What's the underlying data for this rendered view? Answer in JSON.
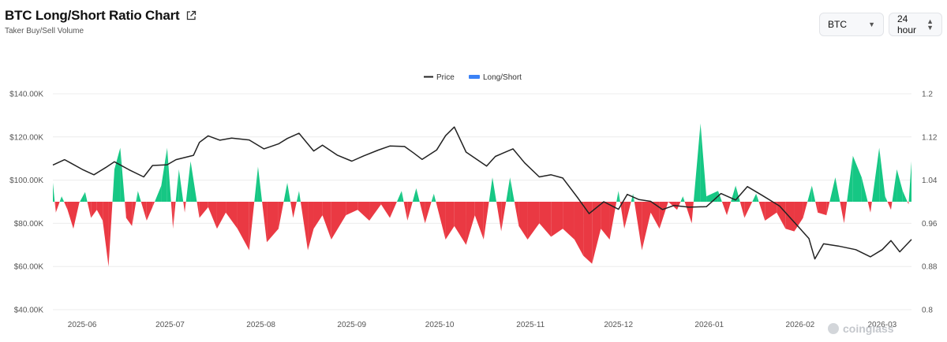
{
  "header": {
    "title": "BTC Long/Short Ratio Chart",
    "subtitle": "Taker Buy/Sell Volume"
  },
  "controls": {
    "coin": "BTC",
    "interval": "24 hour"
  },
  "watermark": "coinglass",
  "colors": {
    "price": "#222222",
    "positive": "#16c784",
    "negative": "#ea3943",
    "legend_ratio": "#3b82f6",
    "grid": "#ececec"
  },
  "chart_data": {
    "type": "line",
    "legend": [
      "Price",
      "Long/Short"
    ],
    "y_left": {
      "lim": [
        40000,
        140000
      ],
      "ticks": [
        "$40.00K",
        "$60.00K",
        "$80.00K",
        "$100.00K",
        "$120.00K",
        "$140.00K"
      ],
      "tick_values": [
        40000,
        60000,
        80000,
        100000,
        120000,
        140000
      ]
    },
    "y_right": {
      "lim": [
        0.8,
        1.2
      ],
      "ticks": [
        "0.8",
        "0.88",
        "0.96",
        "1.04",
        "1.12",
        "1.2"
      ],
      "tick_values": [
        0.8,
        0.88,
        0.96,
        1.04,
        1.12,
        1.2
      ],
      "baseline": 1.0
    },
    "x_ticks": [
      "2025-06",
      "2025-07",
      "2025-08",
      "2025-09",
      "2025-10",
      "2025-11",
      "2025-12",
      "2026-01",
      "2026-02",
      "2026-03"
    ],
    "x_start": "2025-05-22",
    "x_end": "2026-03-11",
    "series": [
      {
        "name": "Price",
        "points": [
          [
            "2025-05-22",
            107000
          ],
          [
            "2025-05-26",
            109500
          ],
          [
            "2025-05-28",
            108000
          ],
          [
            "2025-06-01",
            105000
          ],
          [
            "2025-06-05",
            102500
          ],
          [
            "2025-06-09",
            105800
          ],
          [
            "2025-06-12",
            108500
          ],
          [
            "2025-06-17",
            104800
          ],
          [
            "2025-06-22",
            101500
          ],
          [
            "2025-06-25",
            106800
          ],
          [
            "2025-06-30",
            107100
          ],
          [
            "2025-07-03",
            109500
          ],
          [
            "2025-07-09",
            111500
          ],
          [
            "2025-07-11",
            117500
          ],
          [
            "2025-07-14",
            120500
          ],
          [
            "2025-07-18",
            118500
          ],
          [
            "2025-07-22",
            119500
          ],
          [
            "2025-07-28",
            118600
          ],
          [
            "2025-08-02",
            114500
          ],
          [
            "2025-08-07",
            116800
          ],
          [
            "2025-08-10",
            119300
          ],
          [
            "2025-08-14",
            121700
          ],
          [
            "2025-08-19",
            113500
          ],
          [
            "2025-08-22",
            116200
          ],
          [
            "2025-08-27",
            111600
          ],
          [
            "2025-09-01",
            108800
          ],
          [
            "2025-09-05",
            111200
          ],
          [
            "2025-09-10",
            113900
          ],
          [
            "2025-09-14",
            115800
          ],
          [
            "2025-09-19",
            115600
          ],
          [
            "2025-09-22",
            112700
          ],
          [
            "2025-09-25",
            109600
          ],
          [
            "2025-09-30",
            114000
          ],
          [
            "2025-10-03",
            120600
          ],
          [
            "2025-10-06",
            124600
          ],
          [
            "2025-10-10",
            113000
          ],
          [
            "2025-10-17",
            106500
          ],
          [
            "2025-10-20",
            111000
          ],
          [
            "2025-10-26",
            114500
          ],
          [
            "2025-10-30",
            108000
          ],
          [
            "2025-11-04",
            101500
          ],
          [
            "2025-11-08",
            102500
          ],
          [
            "2025-11-12",
            101000
          ],
          [
            "2025-11-17",
            92000
          ],
          [
            "2025-11-21",
            84500
          ],
          [
            "2025-11-26",
            90000
          ],
          [
            "2025-12-01",
            86500
          ],
          [
            "2025-12-04",
            93400
          ],
          [
            "2025-12-08",
            91000
          ],
          [
            "2025-12-12",
            90200
          ],
          [
            "2025-12-16",
            86400
          ],
          [
            "2025-12-20",
            88300
          ],
          [
            "2025-12-25",
            87500
          ],
          [
            "2025-12-31",
            87700
          ],
          [
            "2026-01-05",
            93800
          ],
          [
            "2026-01-10",
            90800
          ],
          [
            "2026-01-14",
            97000
          ],
          [
            "2026-01-19",
            93000
          ],
          [
            "2026-01-25",
            88000
          ],
          [
            "2026-01-31",
            79000
          ],
          [
            "2026-02-04",
            73000
          ],
          [
            "2026-02-06",
            63500
          ],
          [
            "2026-02-09",
            70500
          ],
          [
            "2026-02-14",
            69500
          ],
          [
            "2026-02-20",
            67800
          ],
          [
            "2026-02-25",
            64500
          ],
          [
            "2026-03-01",
            67800
          ],
          [
            "2026-03-04",
            72000
          ],
          [
            "2026-03-07",
            66800
          ],
          [
            "2026-03-11",
            72500
          ]
        ]
      },
      {
        "name": "Long/Short",
        "points": [
          [
            "2025-05-22",
            1.035
          ],
          [
            "2025-05-23",
            0.98
          ],
          [
            "2025-05-25",
            1.01
          ],
          [
            "2025-05-27",
            0.985
          ],
          [
            "2025-05-29",
            0.95
          ],
          [
            "2025-05-31",
            0.998
          ],
          [
            "2025-06-02",
            1.018
          ],
          [
            "2025-06-04",
            0.97
          ],
          [
            "2025-06-06",
            0.985
          ],
          [
            "2025-06-08",
            0.965
          ],
          [
            "2025-06-10",
            0.88
          ],
          [
            "2025-06-12",
            1.06
          ],
          [
            "2025-06-14",
            1.1
          ],
          [
            "2025-06-16",
            0.97
          ],
          [
            "2025-06-18",
            0.955
          ],
          [
            "2025-06-20",
            1.02
          ],
          [
            "2025-06-23",
            0.965
          ],
          [
            "2025-06-25",
            0.99
          ],
          [
            "2025-06-28",
            1.03
          ],
          [
            "2025-06-30",
            1.1
          ],
          [
            "2025-07-02",
            0.95
          ],
          [
            "2025-07-04",
            1.06
          ],
          [
            "2025-07-06",
            0.98
          ],
          [
            "2025-07-08",
            1.075
          ],
          [
            "2025-07-11",
            0.97
          ],
          [
            "2025-07-14",
            0.99
          ],
          [
            "2025-07-17",
            0.95
          ],
          [
            "2025-07-20",
            0.98
          ],
          [
            "2025-07-24",
            0.95
          ],
          [
            "2025-07-28",
            0.91
          ],
          [
            "2025-07-31",
            1.065
          ],
          [
            "2025-08-03",
            0.925
          ],
          [
            "2025-08-07",
            0.95
          ],
          [
            "2025-08-10",
            1.035
          ],
          [
            "2025-08-12",
            0.97
          ],
          [
            "2025-08-14",
            1.02
          ],
          [
            "2025-08-17",
            0.91
          ],
          [
            "2025-08-19",
            0.95
          ],
          [
            "2025-08-22",
            0.975
          ],
          [
            "2025-08-25",
            0.93
          ],
          [
            "2025-08-30",
            0.975
          ],
          [
            "2025-09-03",
            0.985
          ],
          [
            "2025-09-07",
            0.965
          ],
          [
            "2025-09-11",
            0.995
          ],
          [
            "2025-09-14",
            0.97
          ],
          [
            "2025-09-18",
            1.02
          ],
          [
            "2025-09-20",
            0.965
          ],
          [
            "2025-09-23",
            1.025
          ],
          [
            "2025-09-26",
            0.96
          ],
          [
            "2025-09-29",
            1.015
          ],
          [
            "2025-10-03",
            0.93
          ],
          [
            "2025-10-06",
            0.955
          ],
          [
            "2025-10-10",
            0.92
          ],
          [
            "2025-10-13",
            0.975
          ],
          [
            "2025-10-16",
            0.93
          ],
          [
            "2025-10-19",
            1.045
          ],
          [
            "2025-10-22",
            0.945
          ],
          [
            "2025-10-25",
            1.045
          ],
          [
            "2025-10-28",
            0.955
          ],
          [
            "2025-10-31",
            0.93
          ],
          [
            "2025-11-04",
            0.96
          ],
          [
            "2025-11-08",
            0.935
          ],
          [
            "2025-11-12",
            0.95
          ],
          [
            "2025-11-16",
            0.93
          ],
          [
            "2025-11-19",
            0.9
          ],
          [
            "2025-11-22",
            0.885
          ],
          [
            "2025-11-25",
            0.95
          ],
          [
            "2025-11-28",
            0.93
          ],
          [
            "2025-12-01",
            1.02
          ],
          [
            "2025-12-03",
            0.95
          ],
          [
            "2025-12-06",
            1.015
          ],
          [
            "2025-12-09",
            0.91
          ],
          [
            "2025-12-12",
            0.98
          ],
          [
            "2025-12-15",
            0.95
          ],
          [
            "2025-12-18",
            1.0
          ],
          [
            "2025-12-21",
            0.985
          ],
          [
            "2025-12-23",
            1.01
          ],
          [
            "2025-12-26",
            0.96
          ],
          [
            "2025-12-29",
            1.145
          ],
          [
            "2025-12-31",
            1.01
          ],
          [
            "2026-01-04",
            1.02
          ],
          [
            "2026-01-07",
            0.975
          ],
          [
            "2026-01-10",
            1.03
          ],
          [
            "2026-01-13",
            0.97
          ],
          [
            "2026-01-17",
            1.015
          ],
          [
            "2026-01-20",
            0.965
          ],
          [
            "2026-01-24",
            0.98
          ],
          [
            "2026-01-27",
            0.95
          ],
          [
            "2026-01-30",
            0.945
          ],
          [
            "2026-02-02",
            0.97
          ],
          [
            "2026-02-05",
            1.03
          ],
          [
            "2026-02-07",
            0.98
          ],
          [
            "2026-02-10",
            0.975
          ],
          [
            "2026-02-13",
            1.045
          ],
          [
            "2026-02-16",
            0.96
          ],
          [
            "2026-02-19",
            1.085
          ],
          [
            "2026-02-22",
            1.045
          ],
          [
            "2026-02-25",
            0.98
          ],
          [
            "2026-02-28",
            1.1
          ],
          [
            "2026-03-02",
            1.01
          ],
          [
            "2026-03-04",
            0.985
          ],
          [
            "2026-03-06",
            1.06
          ],
          [
            "2026-03-08",
            1.02
          ],
          [
            "2026-03-10",
            0.995
          ],
          [
            "2026-03-11",
            1.075
          ]
        ]
      }
    ],
    "grid": true,
    "legend_position": "top-center"
  }
}
